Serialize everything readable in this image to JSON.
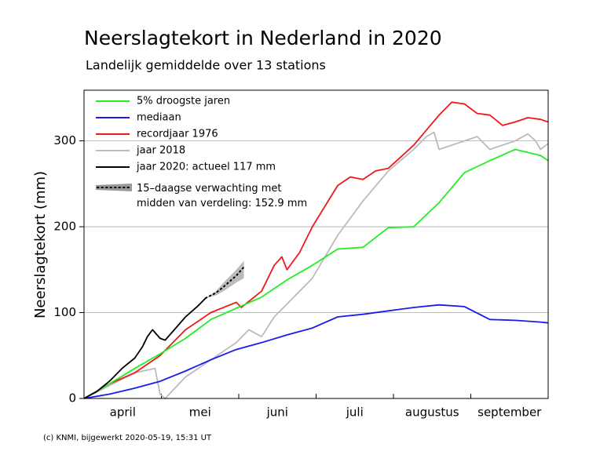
{
  "chart_data": {
    "type": "line",
    "title": "Neerslagtekort in Nederland in 2020",
    "subtitle": "Landelijk gemiddelde over 13 stations",
    "y_label": "Neerslagtekort (mm)",
    "footer": "(c) KNMI, bijgewerkt 2020-05-19, 15:31 UT",
    "categories": [
      "april",
      "mei",
      "juni",
      "juli",
      "augustus",
      "september"
    ],
    "xlim": [
      0,
      183
    ],
    "ylim": [
      0,
      359
    ],
    "yticks": [
      0,
      100,
      200,
      300
    ],
    "grid": true,
    "series": [
      {
        "name": "5% droogste jaren",
        "color": "#22ee22",
        "x": [
          0,
          10,
          20,
          30,
          40,
          50,
          60,
          70,
          80,
          90,
          100,
          110,
          120,
          130,
          140,
          150,
          160,
          170,
          180,
          183
        ],
        "values": [
          0,
          17,
          35,
          52,
          70,
          92,
          105,
          118,
          138,
          155,
          174,
          176,
          199,
          200,
          228,
          263,
          277,
          290,
          283,
          277
        ]
      },
      {
        "name": "mediaan",
        "color": "#1a1aee",
        "x": [
          0,
          10,
          20,
          30,
          40,
          50,
          60,
          70,
          80,
          90,
          100,
          110,
          120,
          130,
          140,
          150,
          160,
          170,
          180,
          183
        ],
        "values": [
          0,
          5,
          12,
          20,
          32,
          45,
          57,
          65,
          74,
          82,
          95,
          98,
          102,
          106,
          109,
          107,
          92,
          91,
          89,
          88
        ]
      },
      {
        "name": "recordjaar 1976",
        "color": "#ee1a1a",
        "x": [
          0,
          10,
          20,
          30,
          40,
          50,
          60,
          62,
          70,
          75,
          78,
          80,
          85,
          90,
          100,
          105,
          110,
          115,
          120,
          130,
          140,
          145,
          150,
          155,
          160,
          165,
          170,
          175,
          180,
          183
        ],
        "values": [
          0,
          17,
          30,
          50,
          80,
          100,
          112,
          106,
          125,
          155,
          165,
          150,
          170,
          200,
          248,
          258,
          255,
          265,
          268,
          295,
          330,
          345,
          343,
          332,
          330,
          318,
          322,
          327,
          325,
          322
        ]
      },
      {
        "name": "jaar 2018",
        "color": "#bbbbbb",
        "x": [
          0,
          10,
          20,
          28,
          30,
          32,
          40,
          50,
          60,
          65,
          70,
          75,
          80,
          90,
          100,
          110,
          120,
          130,
          135,
          138,
          140,
          150,
          155,
          160,
          170,
          175,
          178,
          180,
          183
        ],
        "values": [
          0,
          15,
          30,
          35,
          5,
          0,
          25,
          45,
          65,
          80,
          72,
          95,
          110,
          140,
          190,
          230,
          265,
          290,
          305,
          310,
          290,
          300,
          305,
          290,
          300,
          308,
          300,
          290,
          297
        ]
      },
      {
        "name": "jaar 2020: actueel 117 mm",
        "color": "#000000",
        "x": [
          0,
          5,
          10,
          15,
          20,
          23,
          25,
          27,
          30,
          32,
          35,
          40,
          45,
          48
        ],
        "values": [
          0,
          8,
          20,
          35,
          47,
          60,
          72,
          80,
          70,
          68,
          78,
          95,
          108,
          117
        ]
      }
    ],
    "forecast": {
      "name": "15–daagse verwachting met midden van verdeling: 152.9 mm",
      "color": "#999999",
      "x": [
        48,
        52,
        55,
        60,
        63
      ],
      "values": [
        117,
        123,
        130,
        143,
        152.9
      ],
      "lower": [
        117,
        120,
        125,
        135,
        140
      ],
      "upper": [
        117,
        125,
        135,
        150,
        160
      ]
    }
  }
}
